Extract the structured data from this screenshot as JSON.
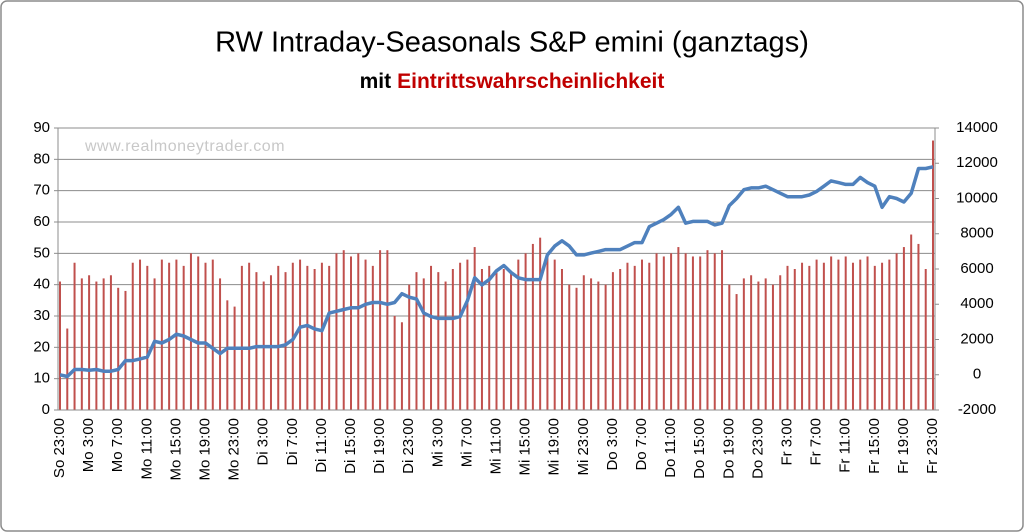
{
  "chart_data": {
    "type": "bar-line",
    "title": "RW Intraday-Seasonals  S&P emini (ganztags)",
    "subtitle": [
      "mit",
      "Eintrittswahrscheinlichkeit"
    ],
    "annotation": "www.realmoneytrader.com",
    "categories": [
      "So 23:00",
      null,
      null,
      null,
      "Mo 3:00",
      null,
      null,
      null,
      "Mo 7:00",
      null,
      null,
      null,
      "Mo 11:00",
      null,
      null,
      null,
      "Mo 15:00",
      null,
      null,
      null,
      "Mo 19:00",
      null,
      null,
      null,
      "Mo 23:00",
      null,
      null,
      null,
      "Di 3:00",
      null,
      null,
      null,
      "Di 7:00",
      null,
      null,
      null,
      "Di 11:00",
      null,
      null,
      null,
      "Di 15:00",
      null,
      null,
      null,
      "Di 19:00",
      null,
      null,
      null,
      "Di 23:00",
      null,
      null,
      null,
      "Mi 3:00",
      null,
      null,
      null,
      "Mi 7:00",
      null,
      null,
      null,
      "Mi 11:00",
      null,
      null,
      null,
      "Mi 15:00",
      null,
      null,
      null,
      "Mi 19:00",
      null,
      null,
      null,
      "Mi 23:00",
      null,
      null,
      null,
      "Do 3:00",
      null,
      null,
      null,
      "Do 7:00",
      null,
      null,
      null,
      "Do 11:00",
      null,
      null,
      null,
      "Do 15:00",
      null,
      null,
      null,
      "Do 19:00",
      null,
      null,
      null,
      "Do 23:00",
      null,
      null,
      null,
      "Fr 3:00",
      null,
      null,
      null,
      "Fr 7:00",
      null,
      null,
      null,
      "Fr 11:00",
      null,
      null,
      null,
      "Fr 15:00",
      null,
      null,
      null,
      "Fr 19:00",
      null,
      null,
      null,
      "Fr 23:00"
    ],
    "series": [
      {
        "type": "bar",
        "color": "#c0504d",
        "axis": "y",
        "values": [
          41,
          26,
          47,
          42,
          43,
          41,
          42,
          43,
          39,
          38,
          47,
          48,
          46,
          42,
          48,
          47,
          48,
          46,
          50,
          49,
          47,
          48,
          42,
          35,
          33,
          46,
          47,
          44,
          41,
          43,
          46,
          44,
          47,
          48,
          46,
          45,
          47,
          46,
          50,
          51,
          49,
          50,
          48,
          46,
          51,
          51,
          30,
          28,
          40,
          44,
          42,
          46,
          44,
          41,
          45,
          47,
          48,
          52,
          45,
          46,
          44,
          45,
          44,
          48,
          50,
          53,
          55,
          50,
          48,
          45,
          40,
          39,
          43,
          42,
          41,
          40,
          44,
          45,
          47,
          46,
          48,
          47,
          50,
          49,
          50,
          52,
          50,
          49,
          49,
          51,
          50,
          51,
          40,
          37,
          42,
          43,
          41,
          42,
          40,
          43,
          46,
          45,
          47,
          46,
          48,
          47,
          49,
          48,
          49,
          47,
          48,
          49,
          46,
          47,
          48,
          50,
          52,
          56,
          53,
          45,
          86
        ]
      },
      {
        "type": "line",
        "color": "#4f81bd",
        "axis": "y2",
        "values": [
          0,
          -100,
          300,
          300,
          250,
          300,
          200,
          200,
          300,
          800,
          800,
          900,
          1000,
          1900,
          1800,
          2000,
          2300,
          2200,
          2000,
          1800,
          1800,
          1500,
          1200,
          1500,
          1500,
          1500,
          1500,
          1600,
          1600,
          1600,
          1600,
          1700,
          2000,
          2700,
          2800,
          2600,
          2500,
          3500,
          3600,
          3700,
          3800,
          3800,
          4000,
          4100,
          4100,
          4000,
          4100,
          4600,
          4400,
          4300,
          3500,
          3300,
          3200,
          3200,
          3200,
          3300,
          4200,
          5500,
          5100,
          5400,
          5900,
          6200,
          5800,
          5500,
          5400,
          5400,
          5400,
          6800,
          7300,
          7600,
          7300,
          6800,
          6800,
          6900,
          7000,
          7100,
          7100,
          7100,
          7300,
          7500,
          7500,
          8400,
          8600,
          8800,
          9100,
          9500,
          8600,
          8700,
          8700,
          8700,
          8500,
          8600,
          9600,
          10000,
          10500,
          10600,
          10600,
          10700,
          10500,
          10300,
          10100,
          10100,
          10100,
          10200,
          10400,
          10700,
          11000,
          10900,
          10800,
          10800,
          11200,
          10900,
          10700,
          9500,
          10100,
          10000,
          9800,
          10300,
          11700,
          11700,
          11800
        ]
      }
    ],
    "ylim": [
      0,
      90
    ],
    "yticks": [
      0,
      10,
      20,
      30,
      40,
      50,
      60,
      70,
      80,
      90
    ],
    "y2lim": [
      -2000,
      14000
    ],
    "y2ticks": [
      -2000,
      0,
      2000,
      4000,
      6000,
      8000,
      10000,
      12000,
      14000
    ],
    "grid": true
  }
}
